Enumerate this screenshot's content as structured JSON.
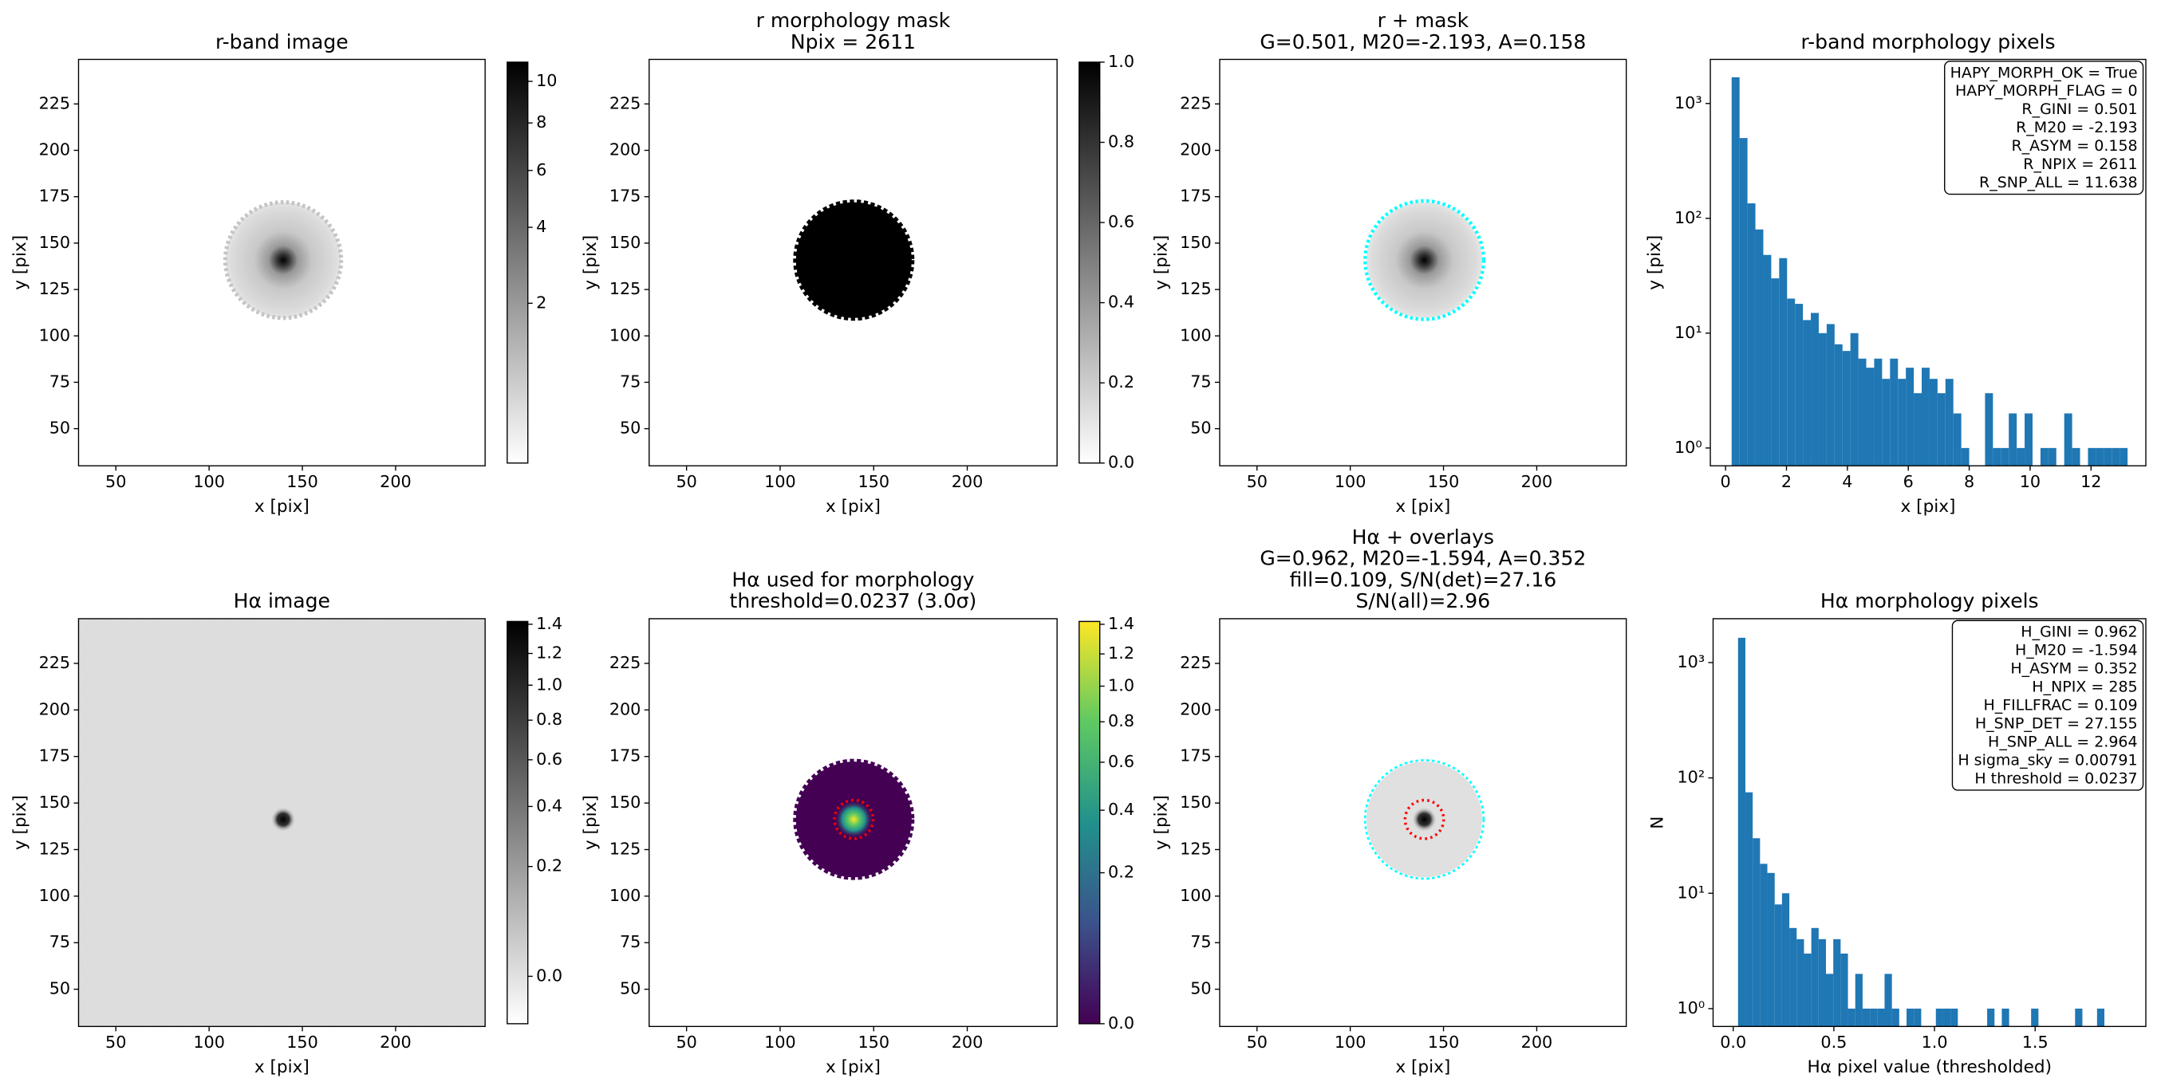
{
  "chart_data": [
    {
      "type": "image",
      "title": [
        "r-band image"
      ],
      "xlabel": "x [pix]",
      "ylabel": "y [pix]",
      "xlim": [
        30,
        248
      ],
      "ylim": [
        30,
        249
      ],
      "xticks": [
        50,
        100,
        150,
        200
      ],
      "yticks": [
        50,
        75,
        100,
        125,
        150,
        175,
        200,
        225
      ],
      "colorbar": {
        "cmap": "gray_r",
        "scale": "sqrt",
        "lim": [
          0.3,
          11
        ],
        "ticks": [
          2,
          4,
          6,
          8,
          10
        ]
      }
    },
    {
      "type": "image",
      "title": [
        "r morphology mask",
        "Npix = 2611"
      ],
      "xlabel": "x [pix]",
      "ylabel": "y [pix]",
      "xlim": [
        30,
        248
      ],
      "ylim": [
        30,
        249
      ],
      "xticks": [
        50,
        100,
        150,
        200
      ],
      "yticks": [
        50,
        75,
        100,
        125,
        150,
        175,
        200,
        225
      ],
      "colorbar": {
        "cmap": "gray_r",
        "scale": "linear",
        "lim": [
          0,
          1
        ],
        "ticks": [
          {
            "value": 0,
            "label": "0.0"
          },
          0.2,
          0.4,
          0.6,
          0.8,
          {
            "value": 1,
            "label": "1.0"
          }
        ]
      }
    },
    {
      "type": "image",
      "title": [
        "r + mask",
        "G=0.501, M20=-2.193, A=0.158"
      ],
      "xlabel": "x [pix]",
      "ylabel": "y [pix]",
      "xlim": [
        30,
        248
      ],
      "ylim": [
        30,
        249
      ],
      "xticks": [
        50,
        100,
        150,
        200
      ],
      "yticks": [
        50,
        75,
        100,
        125,
        150,
        175,
        200,
        225
      ]
    },
    {
      "type": "histogram",
      "title": [
        "r-band morphology pixels"
      ],
      "xlabel": "x [pix]",
      "ylabel": "y [pix]",
      "color": "#1f77b4",
      "bins": [
        0.2,
        0.46,
        0.72,
        0.98,
        1.24,
        1.5,
        1.76,
        2.02,
        2.28,
        2.54,
        2.8,
        3.06,
        3.32,
        3.58,
        3.84,
        4.1,
        4.36,
        4.62,
        4.88,
        5.14,
        5.4,
        5.66,
        5.92,
        6.18,
        6.44,
        6.7,
        6.96,
        7.22,
        7.48,
        7.74,
        8.0,
        8.26,
        8.52,
        8.78,
        9.04,
        9.3,
        9.56,
        9.82,
        10.08,
        10.34,
        10.6,
        10.86,
        11.12,
        11.38,
        11.64,
        11.9,
        12.16,
        12.42,
        12.68,
        12.94,
        13.2
      ],
      "values": [
        1690,
        500,
        135,
        80,
        48,
        30,
        45,
        20,
        18,
        13,
        15,
        10,
        12,
        8,
        7,
        10,
        6,
        5,
        6,
        4,
        6,
        4,
        5,
        3,
        5,
        4,
        3,
        4,
        2,
        1,
        0,
        0,
        3,
        1,
        1,
        2,
        1,
        2,
        0,
        1,
        1,
        0,
        2,
        1,
        0,
        1,
        1,
        1,
        1,
        1
      ],
      "xlim": [
        -0.5,
        13.8
      ],
      "xticks": [
        0,
        2,
        4,
        6,
        8,
        10,
        12
      ],
      "yscale": "log",
      "ylim": [
        0.7,
        2420
      ],
      "yticks": [
        {
          "value": 1,
          "label": "10⁰"
        },
        {
          "value": 10,
          "label": "10¹"
        },
        {
          "value": 100,
          "label": "10²"
        },
        {
          "value": 1000,
          "label": "10³"
        }
      ],
      "annotation": [
        "HAPY_MORPH_OK = True",
        "HAPY_MORPH_FLAG = 0",
        "R_GINI = 0.501",
        "R_M20 = -2.193",
        "R_ASYM = 0.158",
        "R_NPIX = 2611",
        "R_SNP_ALL = 11.638"
      ]
    },
    {
      "type": "image",
      "title": [
        "Hα image"
      ],
      "xlabel": "x [pix]",
      "ylabel": "y [pix]",
      "xlim": [
        30,
        248
      ],
      "ylim": [
        30,
        249
      ],
      "xticks": [
        50,
        100,
        150,
        200
      ],
      "yticks": [
        50,
        75,
        100,
        125,
        150,
        175,
        200,
        225
      ],
      "colorbar": {
        "cmap": "gray_r",
        "scale": "sqrt",
        "lim": [
          -0.02,
          1.42
        ],
        "ticks": [
          {
            "value": 0,
            "label": "0.0"
          },
          0.2,
          0.4,
          0.6,
          0.8,
          {
            "value": 1,
            "label": "1.0"
          },
          1.2,
          1.4
        ]
      }
    },
    {
      "type": "image",
      "title": [
        "Hα used for morphology",
        "threshold=0.0237 (3.0σ)"
      ],
      "xlabel": "x [pix]",
      "ylabel": "y [pix]",
      "xlim": [
        30,
        248
      ],
      "ylim": [
        30,
        249
      ],
      "xticks": [
        50,
        100,
        150,
        200
      ],
      "yticks": [
        50,
        75,
        100,
        125,
        150,
        175,
        200,
        225
      ],
      "colorbar": {
        "cmap": "viridis",
        "scale": "sqrt",
        "lim": [
          0,
          1.42
        ],
        "ticks": [
          {
            "value": 0,
            "label": "0.0"
          },
          0.2,
          0.4,
          0.6,
          0.8,
          {
            "value": 1,
            "label": "1.0"
          },
          1.2,
          1.4
        ]
      }
    },
    {
      "type": "image",
      "title": [
        "Hα + overlays",
        "G=0.962, M20=-1.594, A=0.352",
        "fill=0.109, S/N(det)=27.16",
        "S/N(all)=2.96"
      ],
      "xlabel": "x [pix]",
      "ylabel": "y [pix]",
      "xlim": [
        30,
        248
      ],
      "ylim": [
        30,
        249
      ],
      "xticks": [
        50,
        100,
        150,
        200
      ],
      "yticks": [
        50,
        75,
        100,
        125,
        150,
        175,
        200,
        225
      ]
    },
    {
      "type": "histogram",
      "title": [
        "Hα morphology pixels"
      ],
      "xlabel": "Hα pixel value (thresholded)",
      "ylabel": "N",
      "color": "#1f77b4",
      "bins": [
        0.024,
        0.0604,
        0.0968,
        0.1332,
        0.1696,
        0.206,
        0.2424,
        0.2788,
        0.3152,
        0.3516,
        0.388,
        0.4244,
        0.4608,
        0.4972,
        0.5336,
        0.57,
        0.6064,
        0.6428,
        0.6792,
        0.7156,
        0.752,
        0.7884,
        0.8248,
        0.8612,
        0.8976,
        0.934,
        0.9704,
        1.0068,
        1.0432,
        1.0796,
        1.116,
        1.1524,
        1.1888,
        1.2252,
        1.2616,
        1.298,
        1.3344,
        1.3708,
        1.4072,
        1.4436,
        1.48,
        1.5164,
        1.5528,
        1.5892,
        1.6256,
        1.662,
        1.6984,
        1.7348,
        1.7712,
        1.8076,
        1.844
      ],
      "values": [
        1640,
        75,
        30,
        18,
        15,
        8,
        10,
        5,
        4,
        3,
        5,
        4,
        2,
        4,
        3,
        1,
        2,
        1,
        1,
        1,
        2,
        1,
        0,
        1,
        1,
        0,
        0,
        1,
        1,
        1,
        0,
        0,
        0,
        0,
        1,
        0,
        1,
        0,
        0,
        0,
        1,
        0,
        0,
        0,
        0,
        0,
        1,
        0,
        0,
        1
      ],
      "xlim": [
        -0.1,
        2.05
      ],
      "xticks": [
        {
          "value": 0,
          "label": "0.0"
        },
        0.5,
        {
          "value": 1,
          "label": "1.0"
        },
        1.5
      ],
      "yscale": "log",
      "ylim": [
        0.7,
        2400
      ],
      "yticks": [
        {
          "value": 1,
          "label": "10⁰"
        },
        {
          "value": 10,
          "label": "10¹"
        },
        {
          "value": 100,
          "label": "10²"
        },
        {
          "value": 1000,
          "label": "10³"
        }
      ],
      "annotation": [
        "H_GINI = 0.962",
        "H_M20 = -1.594",
        "H_ASYM = 0.352",
        "H_NPIX = 285",
        "H_FILLFRAC = 0.109",
        "H_SNP_DET = 27.155",
        "H_SNP_ALL = 2.964",
        "H sigma_sky = 0.00791",
        "H threshold = 0.0237"
      ]
    }
  ]
}
